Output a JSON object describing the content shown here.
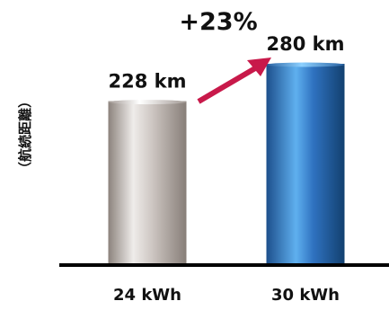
{
  "chart_data": {
    "type": "bar",
    "ylabel": "（航続距離）",
    "categories": [
      "24 kWh",
      "30 kWh"
    ],
    "values": [
      228,
      280
    ],
    "data_labels": [
      "228 km",
      "280 km"
    ],
    "unit": "km",
    "annotation": "+23%",
    "ylim": [
      0,
      300
    ],
    "grid": false,
    "legend": "none",
    "colors": {
      "bar_1": "#9d948f",
      "bar_2": "#2f6eb3",
      "arrow": "#c8194a",
      "baseline": "#000000"
    }
  }
}
